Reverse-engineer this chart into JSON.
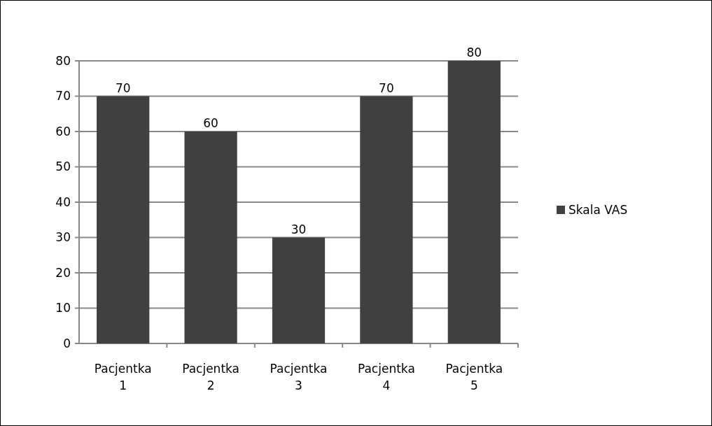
{
  "chart_data": {
    "type": "bar",
    "categories": [
      "Pacjentka 1",
      "Pacjentka 2",
      "Pacjentka 3",
      "Pacjentka 4",
      "Pacjentka 5"
    ],
    "series": [
      {
        "name": "Skala VAS",
        "color": "#404040",
        "values": [
          70,
          60,
          30,
          70,
          80
        ]
      }
    ],
    "ylim": [
      0,
      80
    ],
    "yticks": [
      0,
      10,
      20,
      30,
      40,
      50,
      60,
      70,
      80
    ],
    "grid": "y",
    "legend": "right",
    "data_labels": true
  }
}
